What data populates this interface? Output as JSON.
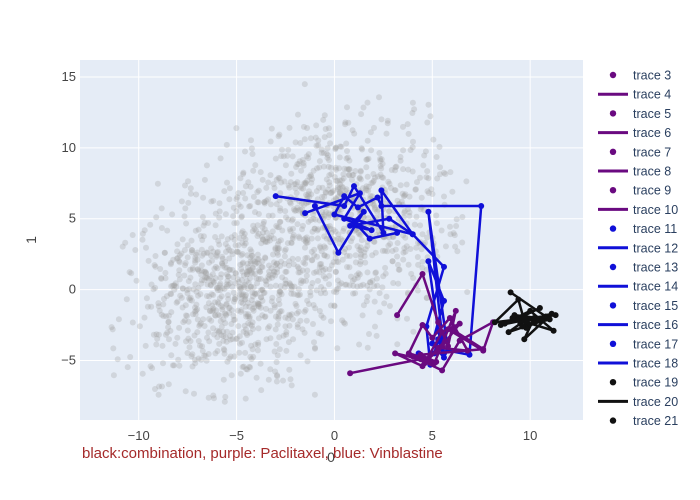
{
  "chart_data": {
    "type": "scatter",
    "xlabel": "0",
    "ylabel": "1",
    "xlim": [
      -13,
      12.7
    ],
    "ylim": [
      -9.2,
      16.2
    ],
    "xticks": [
      -10,
      -5,
      0,
      5,
      10
    ],
    "yticks": [
      -5,
      0,
      5,
      10,
      15
    ],
    "grid": true,
    "legend_position": "right",
    "annotation": "black:combination, purple: Paclitaxel, blue: Vinblastine",
    "colors": {
      "background": "#e5ecf6",
      "grid": "#ffffff",
      "purple": "#6a0a80",
      "blue": "#1010d8",
      "black": "#111111",
      "gray": "#a0a0a0",
      "annotation": "#a52a2a"
    },
    "legend": [
      {
        "name": "trace 3",
        "kind": "marker",
        "color": "purple"
      },
      {
        "name": "trace 4",
        "kind": "line",
        "color": "purple"
      },
      {
        "name": "trace 5",
        "kind": "marker",
        "color": "purple"
      },
      {
        "name": "trace 6",
        "kind": "line",
        "color": "purple"
      },
      {
        "name": "trace 7",
        "kind": "marker",
        "color": "purple"
      },
      {
        "name": "trace 8",
        "kind": "line",
        "color": "purple"
      },
      {
        "name": "trace 9",
        "kind": "marker",
        "color": "purple"
      },
      {
        "name": "trace 10",
        "kind": "line",
        "color": "purple"
      },
      {
        "name": "trace 11",
        "kind": "marker",
        "color": "blue"
      },
      {
        "name": "trace 12",
        "kind": "line",
        "color": "blue"
      },
      {
        "name": "trace 13",
        "kind": "marker",
        "color": "blue"
      },
      {
        "name": "trace 14",
        "kind": "line",
        "color": "blue"
      },
      {
        "name": "trace 15",
        "kind": "marker",
        "color": "blue"
      },
      {
        "name": "trace 16",
        "kind": "line",
        "color": "blue"
      },
      {
        "name": "trace 17",
        "kind": "marker",
        "color": "blue"
      },
      {
        "name": "trace 18",
        "kind": "line",
        "color": "blue"
      },
      {
        "name": "trace 19",
        "kind": "marker",
        "color": "black"
      },
      {
        "name": "trace 20",
        "kind": "line",
        "color": "black"
      },
      {
        "name": "trace 21",
        "kind": "marker",
        "color": "black"
      }
    ],
    "series": [
      {
        "color": "blue",
        "x": [
          -3,
          0.5,
          1,
          2.5,
          2.4,
          4,
          0,
          0.5,
          1.2,
          2.2,
          2.4,
          7.5,
          6.9,
          5.8,
          4.8,
          5.6,
          5.5,
          5.3,
          4.8,
          5.6,
          5.0,
          5.6,
          5.3,
          5.1
        ],
        "y": [
          6.6,
          5.9,
          7.3,
          4.0,
          7.0,
          3.9,
          5.3,
          6.6,
          5.8,
          6.5,
          5.9,
          5.9,
          -4.6,
          -4.3,
          5.5,
          -4.5,
          -4.1,
          -2.9,
          2.0,
          -0.8,
          -3.8,
          -4.8,
          -3.5,
          -4.5
        ]
      },
      {
        "color": "blue",
        "x": [
          -1.5,
          1.3,
          0.5,
          1.9,
          0.8,
          2.8,
          4.0,
          5.6,
          4.7,
          4.9,
          4.3
        ],
        "y": [
          5.4,
          6.8,
          5.0,
          4.2,
          4.5,
          5.0,
          3.9,
          1.6,
          -2.6,
          -5.3,
          -4.5
        ]
      },
      {
        "color": "blue",
        "x": [
          -1,
          0.2,
          1.5,
          1.0,
          1.8,
          3.2
        ],
        "y": [
          5.9,
          2.6,
          5.5,
          4.8,
          3.6,
          4.0
        ]
      },
      {
        "color": "purple",
        "x": [
          0.8,
          4.4,
          3.1,
          4.5,
          5.3,
          6.8,
          5.9,
          5.0,
          4.5,
          3.8,
          4.8,
          5.5,
          6.4,
          5.5,
          4.6,
          5.2,
          4.4,
          7.6,
          6.0
        ],
        "y": [
          -5.9,
          -4.9,
          -4.5,
          -5.4,
          -4.1,
          -4.3,
          -2.0,
          -3.4,
          -2.5,
          -4.5,
          -4.9,
          -4.0,
          -2.4,
          -3.0,
          -5.2,
          -5.1,
          -4.6,
          -4.2,
          -2.8
        ]
      },
      {
        "color": "purple",
        "x": [
          3.2,
          4.5,
          5.3,
          5.8,
          6.2,
          5.1,
          4.0,
          5.5,
          6.4,
          8.1,
          7.6,
          5.8
        ],
        "y": [
          -1.8,
          1.1,
          -2.3,
          -4.0,
          -1.5,
          -5.2,
          -4.7,
          -5.7,
          -3.6,
          -2.3,
          -4.3,
          -2.8
        ]
      },
      {
        "color": "black",
        "x": [
          9.0,
          10.8,
          9.8,
          9.4,
          8.2,
          11.3,
          9.3,
          10.5,
          8.5,
          10.2,
          9.7,
          11.1,
          9.5,
          8.9,
          10.6,
          9.1,
          11.2,
          10.0,
          8.7,
          10.9,
          9.6,
          11.0,
          9.2
        ],
        "y": [
          -0.2,
          -1.9,
          -2.7,
          -0.7,
          -2.3,
          -1.8,
          -2.1,
          -1.3,
          -2.5,
          -2.0,
          -3.5,
          -1.7,
          -2.4,
          -3.0,
          -2.2,
          -2.0,
          -2.9,
          -1.5,
          -2.4,
          -1.9,
          -2.6,
          -2.1,
          -1.8
        ]
      }
    ],
    "background_cloud": {
      "color": "gray",
      "count": 1600,
      "centers": [
        [
          -5,
          -1
        ],
        [
          -2.5,
          3
        ],
        [
          0,
          7
        ],
        [
          2,
          4
        ],
        [
          -6.5,
          -0.5
        ]
      ],
      "spread": [
        2.4,
        3.0
      ]
    }
  }
}
